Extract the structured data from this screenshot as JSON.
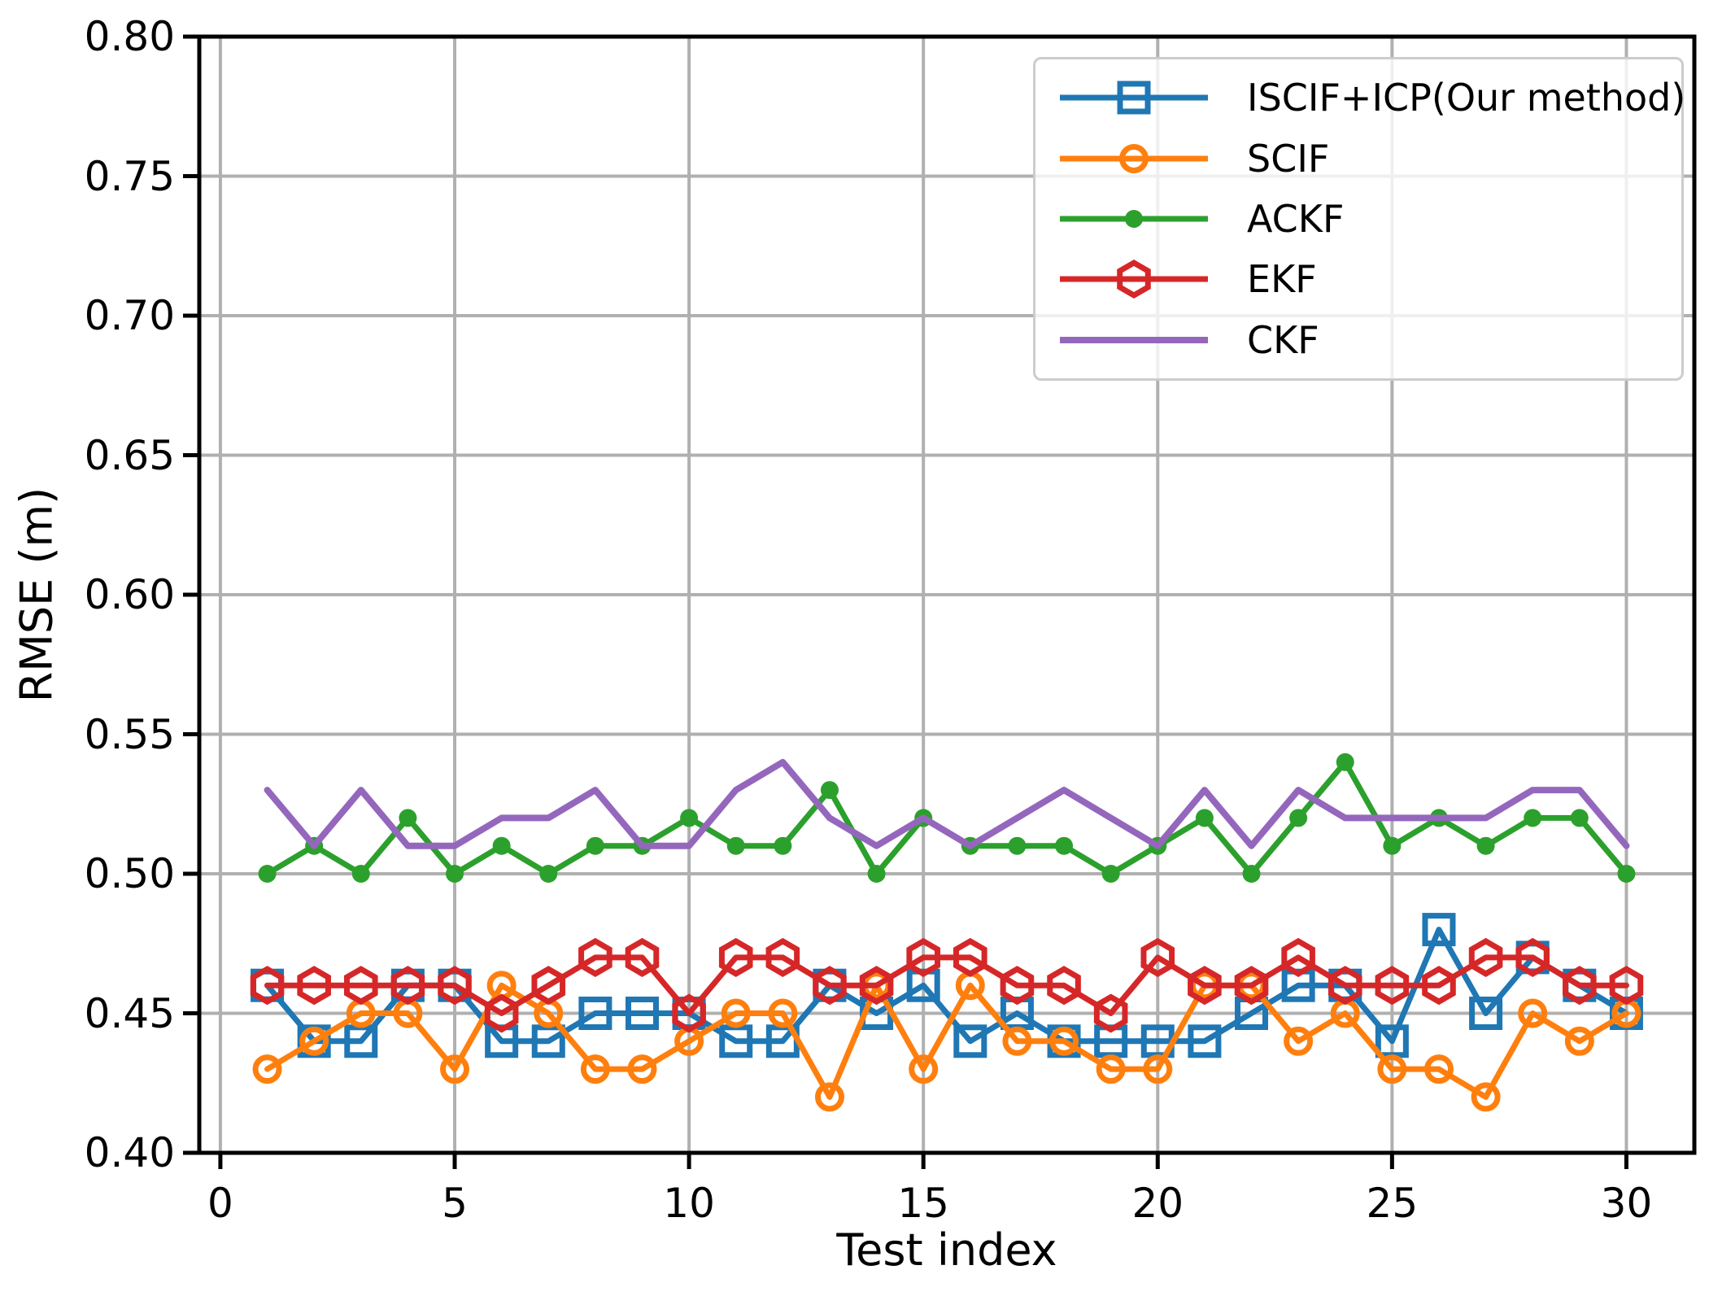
{
  "chart_data": {
    "type": "line",
    "title": "",
    "xlabel": "Test index",
    "ylabel": "RMSE (m)",
    "xlim": [
      -0.45,
      31.45
    ],
    "ylim": [
      0.4,
      0.8
    ],
    "x_ticks": [
      0,
      5,
      10,
      15,
      20,
      25,
      30
    ],
    "y_ticks": [
      0.4,
      0.45,
      0.5,
      0.55,
      0.6,
      0.65,
      0.7,
      0.75,
      0.8
    ],
    "grid": true,
    "grid_color": "#b0b0b0",
    "spine_color": "#000000",
    "legend_position": "upper right",
    "x": [
      1,
      2,
      3,
      4,
      5,
      6,
      7,
      8,
      9,
      10,
      11,
      12,
      13,
      14,
      15,
      16,
      17,
      18,
      19,
      20,
      21,
      22,
      23,
      24,
      25,
      26,
      27,
      28,
      29,
      30
    ],
    "series": [
      {
        "name": "ISCIF+ICP(Our method)",
        "color": "#1f77b4",
        "marker": "square",
        "linewidth": 7,
        "values": [
          0.46,
          0.44,
          0.44,
          0.46,
          0.46,
          0.44,
          0.44,
          0.45,
          0.45,
          0.45,
          0.44,
          0.44,
          0.46,
          0.45,
          0.46,
          0.44,
          0.45,
          0.44,
          0.44,
          0.44,
          0.44,
          0.45,
          0.46,
          0.46,
          0.44,
          0.48,
          0.45,
          0.47,
          0.46,
          0.45
        ]
      },
      {
        "name": "SCIF",
        "color": "#ff7f0e",
        "marker": "circle",
        "linewidth": 7,
        "values": [
          0.43,
          0.44,
          0.45,
          0.45,
          0.43,
          0.46,
          0.45,
          0.43,
          0.43,
          0.44,
          0.45,
          0.45,
          0.42,
          0.46,
          0.43,
          0.46,
          0.44,
          0.44,
          0.43,
          0.43,
          0.46,
          0.46,
          0.44,
          0.45,
          0.43,
          0.43,
          0.42,
          0.45,
          0.44,
          0.45
        ]
      },
      {
        "name": "ACKF",
        "color": "#2ca02c",
        "marker": "dot",
        "linewidth": 7,
        "values": [
          0.5,
          0.51,
          0.5,
          0.52,
          0.5,
          0.51,
          0.5,
          0.51,
          0.51,
          0.52,
          0.51,
          0.51,
          0.53,
          0.5,
          0.52,
          0.51,
          0.51,
          0.51,
          0.5,
          0.51,
          0.52,
          0.5,
          0.52,
          0.54,
          0.51,
          0.52,
          0.51,
          0.52,
          0.52,
          0.5
        ]
      },
      {
        "name": "EKF",
        "color": "#d62728",
        "marker": "hexagon",
        "linewidth": 7,
        "values": [
          0.46,
          0.46,
          0.46,
          0.46,
          0.46,
          0.45,
          0.46,
          0.47,
          0.47,
          0.45,
          0.47,
          0.47,
          0.46,
          0.46,
          0.47,
          0.47,
          0.46,
          0.46,
          0.45,
          0.47,
          0.46,
          0.46,
          0.47,
          0.46,
          0.46,
          0.46,
          0.47,
          0.47,
          0.46,
          0.46
        ]
      },
      {
        "name": "CKF",
        "color": "#9467bd",
        "marker": "none",
        "linewidth": 8,
        "values": [
          0.53,
          0.51,
          0.53,
          0.51,
          0.51,
          0.52,
          0.52,
          0.53,
          0.51,
          0.51,
          0.53,
          0.54,
          0.52,
          0.51,
          0.52,
          0.51,
          0.52,
          0.53,
          0.52,
          0.51,
          0.53,
          0.51,
          0.53,
          0.52,
          0.52,
          0.52,
          0.52,
          0.53,
          0.53,
          0.51
        ]
      }
    ]
  }
}
